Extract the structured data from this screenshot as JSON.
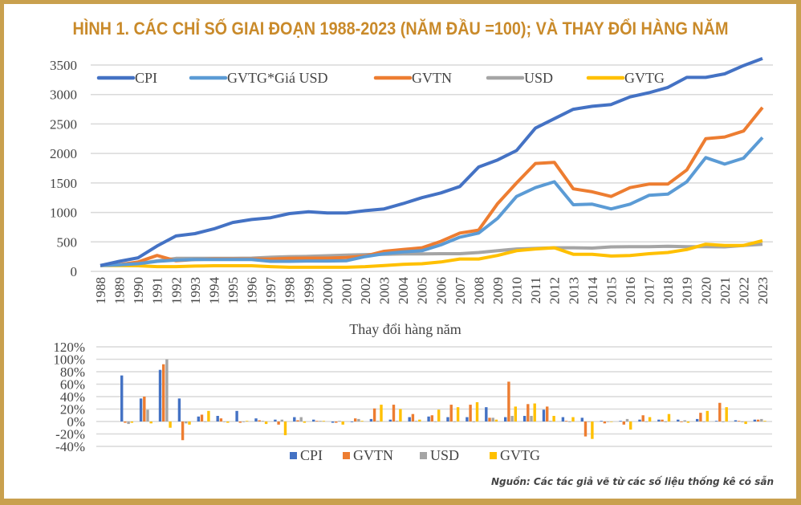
{
  "title": "HÌNH 1. CÁC CHỈ SỐ GIAI ĐOẠN 1988-2023 (NĂM ĐẦU =100); VÀ THAY ĐỔI HÀNG NĂM",
  "source": "Nguồn: Các tác giả vẽ từ các số liệu thống kê có sẵn",
  "colors": {
    "frame": "#c9a04e",
    "title": "#c98a2a"
  },
  "chart_data": [
    {
      "type": "line",
      "title": "",
      "xlabel": "",
      "ylabel": "",
      "ylim": [
        0,
        3500
      ],
      "yticks": [
        "0",
        "500",
        "1000",
        "1500",
        "2000",
        "2500",
        "3000",
        "3500"
      ],
      "grid": true,
      "legend": "top",
      "x": [
        "1988",
        "1989",
        "1990",
        "1991",
        "1992",
        "1993",
        "1994",
        "1995",
        "1996",
        "1997",
        "1998",
        "1999",
        "2000",
        "2001",
        "2002",
        "2003",
        "2004",
        "2005",
        "2006",
        "2007",
        "2008",
        "2009",
        "2010",
        "2011",
        "2012",
        "2013",
        "2014",
        "2015",
        "2016",
        "2017",
        "2018",
        "2019",
        "2020",
        "2021",
        "2022",
        "2023"
      ],
      "series": [
        {
          "name": "CPI",
          "color": "#4472c4",
          "values": [
            100,
            170,
            230,
            430,
            600,
            640,
            720,
            830,
            880,
            910,
            980,
            1010,
            990,
            990,
            1030,
            1060,
            1150,
            1250,
            1330,
            1440,
            1770,
            1890,
            2050,
            2430,
            2590,
            2750,
            2800,
            2830,
            2960,
            3030,
            3120,
            3290,
            3290,
            3350,
            3490,
            3610
          ]
        },
        {
          "name": "GVTG*Giá USD",
          "color": "#5b9bd5",
          "values": [
            100,
            110,
            130,
            170,
            190,
            200,
            200,
            200,
            200,
            170,
            170,
            175,
            175,
            180,
            250,
            300,
            330,
            350,
            450,
            580,
            650,
            900,
            1270,
            1420,
            1520,
            1130,
            1140,
            1060,
            1140,
            1290,
            1310,
            1520,
            1930,
            1820,
            1920,
            2270
          ]
        },
        {
          "name": "GVTN",
          "color": "#ed7d31",
          "values": [
            100,
            115,
            160,
            270,
            180,
            200,
            210,
            210,
            210,
            210,
            220,
            225,
            225,
            235,
            260,
            340,
            370,
            400,
            510,
            650,
            700,
            1150,
            1500,
            1830,
            1850,
            1400,
            1350,
            1270,
            1420,
            1480,
            1480,
            1720,
            2250,
            2280,
            2380,
            2780
          ]
        },
        {
          "name": "USD",
          "color": "#a5a5a5",
          "values": [
            100,
            110,
            130,
            180,
            220,
            220,
            220,
            220,
            225,
            240,
            250,
            255,
            265,
            275,
            285,
            290,
            295,
            295,
            300,
            300,
            320,
            350,
            380,
            390,
            400,
            400,
            395,
            415,
            420,
            420,
            425,
            420,
            420,
            415,
            440,
            460
          ]
        },
        {
          "name": "GVTG",
          "color": "#ffc000",
          "values": [
            100,
            100,
            95,
            80,
            80,
            90,
            95,
            95,
            95,
            80,
            70,
            70,
            70,
            70,
            80,
            100,
            120,
            130,
            160,
            210,
            210,
            270,
            350,
            380,
            400,
            290,
            290,
            260,
            270,
            300,
            320,
            370,
            460,
            440,
            440,
            520
          ]
        }
      ]
    },
    {
      "type": "bar",
      "title": "Thay đổi hàng năm",
      "xlabel": "",
      "ylabel": "",
      "ylim": [
        -40,
        120
      ],
      "yticks": [
        "-40%",
        "-20%",
        "0%",
        "20%",
        "40%",
        "60%",
        "80%",
        "100%",
        "120%"
      ],
      "grid": true,
      "legend": "bottom",
      "series": [
        {
          "name": "CPI",
          "color": "#4472c4",
          "values": [
            74,
            37,
            83,
            37,
            8,
            9,
            17,
            5,
            3,
            7,
            3,
            -2,
            -1,
            4,
            3,
            7,
            8,
            7,
            7,
            23,
            7,
            9,
            19,
            7,
            6,
            1,
            1,
            3,
            3,
            3,
            4,
            1,
            2,
            3
          ]
        },
        {
          "name": "GVTN",
          "color": "#ed7d31",
          "values": [
            -2,
            40,
            92,
            -30,
            11,
            5,
            -2,
            2,
            -5,
            2,
            1,
            -2,
            5,
            21,
            27,
            12,
            10,
            27,
            27,
            6,
            64,
            28,
            24,
            1,
            -24,
            -3,
            -5,
            10,
            3,
            -1,
            14,
            30,
            1,
            3
          ]
        },
        {
          "name": "USD",
          "color": "#a5a5a5",
          "values": [
            -4,
            19,
            100,
            -3,
            0,
            0,
            -1,
            1,
            3,
            7,
            1,
            1,
            4,
            1,
            1,
            1,
            0,
            0,
            -1,
            6,
            9,
            9,
            1,
            -1,
            0,
            0,
            4,
            0,
            -1,
            2,
            0,
            -1,
            -1,
            4
          ]
        },
        {
          "name": "GVTG",
          "color": "#ffc000",
          "values": [
            -2,
            -3,
            -10,
            -5,
            17,
            -2,
            1,
            -4,
            -22,
            -2,
            1,
            -5,
            1,
            27,
            20,
            3,
            19,
            23,
            31,
            3,
            24,
            29,
            9,
            7,
            -28,
            0,
            -13,
            7,
            12,
            -2,
            17,
            23,
            -4,
            1
          ]
        }
      ]
    }
  ]
}
